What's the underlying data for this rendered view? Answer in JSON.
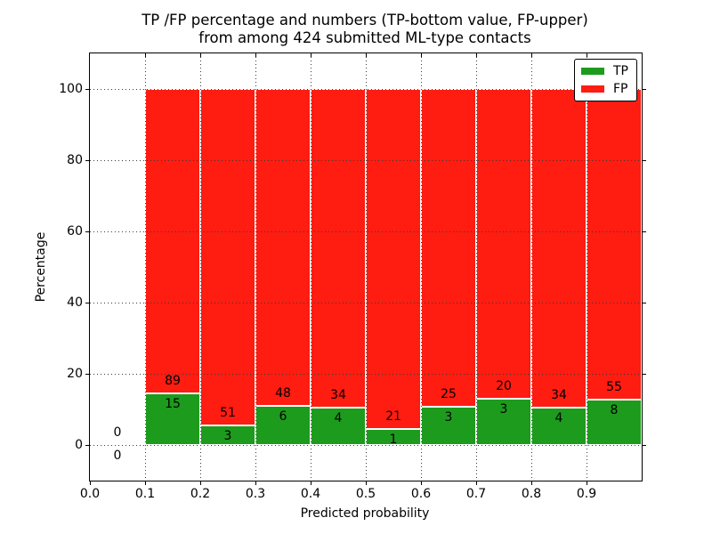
{
  "title": {
    "line1": "TP /FP percentage and numbers (TP-bottom value, FP-upper)",
    "line2": "from among 424 submitted ML-type contacts"
  },
  "chart_data": {
    "type": "bar",
    "stacked": true,
    "title": "TP /FP percentage and numbers (TP-bottom value, FP-upper) from among 424 submitted ML-type contacts",
    "xlabel": "Predicted probability",
    "ylabel": "Percentage",
    "xlim": [
      0.0,
      1.0
    ],
    "ylim": [
      -10,
      110
    ],
    "grid": true,
    "grid_style": "dotted",
    "legend_position": "upper right",
    "total_contacts": 424,
    "x_tick_values": [
      0.0,
      0.1,
      0.2,
      0.3,
      0.4,
      0.5,
      0.6,
      0.7,
      0.8,
      0.9
    ],
    "x_tick_labels": [
      "0.0",
      "0.1",
      "0.2",
      "0.3",
      "0.4",
      "0.5",
      "0.6",
      "0.7",
      "0.8",
      "0.9"
    ],
    "x_top_tick_values": [
      0.1,
      0.2,
      0.3,
      0.4,
      0.5,
      0.6,
      0.7,
      0.8,
      0.9
    ],
    "y_tick_values": [
      0,
      20,
      40,
      60,
      80,
      100
    ],
    "y_tick_labels": [
      "0",
      "20",
      "40",
      "60",
      "80",
      "100"
    ],
    "series": [
      {
        "name": "TP",
        "color": "#1d9b1d"
      },
      {
        "name": "FP",
        "color": "#ff1c11"
      }
    ],
    "bins": [
      {
        "range": [
          0.0,
          0.1
        ],
        "tp_count": 0,
        "fp_count": 0,
        "tp_pct": 0,
        "fp_pct": 0
      },
      {
        "range": [
          0.1,
          0.2
        ],
        "tp_count": 15,
        "fp_count": 89,
        "tp_pct": 14.42,
        "fp_pct": 85.58
      },
      {
        "range": [
          0.2,
          0.3
        ],
        "tp_count": 3,
        "fp_count": 51,
        "tp_pct": 5.56,
        "fp_pct": 94.44
      },
      {
        "range": [
          0.3,
          0.4
        ],
        "tp_count": 6,
        "fp_count": 48,
        "tp_pct": 11.11,
        "fp_pct": 88.89
      },
      {
        "range": [
          0.4,
          0.5
        ],
        "tp_count": 4,
        "fp_count": 34,
        "tp_pct": 10.53,
        "fp_pct": 89.47
      },
      {
        "range": [
          0.5,
          0.6
        ],
        "tp_count": 1,
        "fp_count": 21,
        "tp_pct": 4.55,
        "fp_pct": 95.45
      },
      {
        "range": [
          0.6,
          0.7
        ],
        "tp_count": 3,
        "fp_count": 25,
        "tp_pct": 10.71,
        "fp_pct": 89.29
      },
      {
        "range": [
          0.7,
          0.8
        ],
        "tp_count": 3,
        "fp_count": 20,
        "tp_pct": 13.04,
        "fp_pct": 86.96
      },
      {
        "range": [
          0.8,
          0.9
        ],
        "tp_count": 4,
        "fp_count": 34,
        "tp_pct": 10.53,
        "fp_pct": 89.47
      },
      {
        "range": [
          0.9,
          1.0
        ],
        "tp_count": 8,
        "fp_count": 55,
        "tp_pct": 12.7,
        "fp_pct": 87.3
      }
    ]
  }
}
